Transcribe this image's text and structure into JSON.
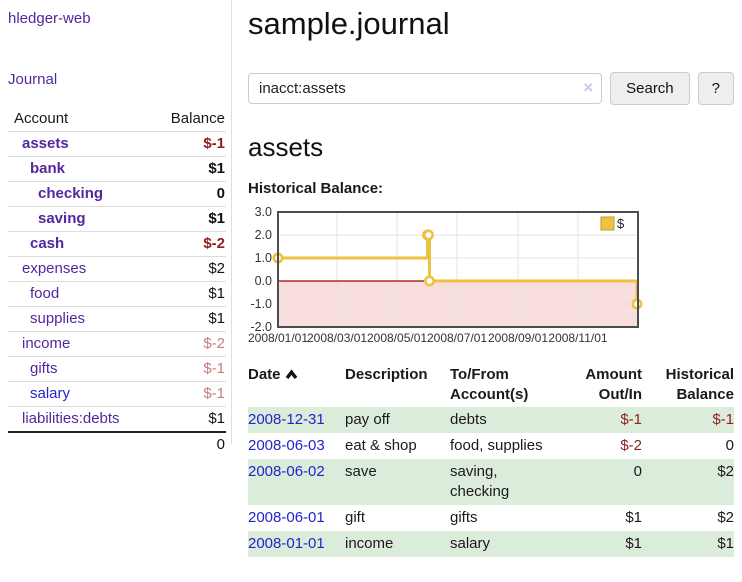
{
  "app": {
    "brand": "hledger-web",
    "nav_journal": "Journal"
  },
  "sidebar": {
    "header": {
      "account": "Account",
      "balance": "Balance"
    },
    "rows": [
      {
        "name": "assets",
        "depth": 1,
        "bold": true,
        "balance": "$-1",
        "neg": "strong",
        "blue": false
      },
      {
        "name": "bank",
        "depth": 2,
        "bold": true,
        "balance": "$1",
        "neg": "",
        "blue": false
      },
      {
        "name": "checking",
        "depth": 3,
        "bold": true,
        "balance": "0",
        "neg": "",
        "blue": false
      },
      {
        "name": "saving",
        "depth": 3,
        "bold": true,
        "balance": "$1",
        "neg": "",
        "blue": false
      },
      {
        "name": "cash",
        "depth": 2,
        "bold": true,
        "balance": "$-2",
        "neg": "strong",
        "blue": false
      },
      {
        "name": "expenses",
        "depth": 1,
        "bold": false,
        "balance": "$2",
        "neg": "",
        "blue": false
      },
      {
        "name": "food",
        "depth": 2,
        "bold": false,
        "balance": "$1",
        "neg": "",
        "blue": false
      },
      {
        "name": "supplies",
        "depth": 2,
        "bold": false,
        "balance": "$1",
        "neg": "",
        "blue": false
      },
      {
        "name": "income",
        "depth": 1,
        "bold": false,
        "balance": "$-2",
        "neg": "soft",
        "blue": false
      },
      {
        "name": "gifts",
        "depth": 2,
        "bold": false,
        "balance": "$-1",
        "neg": "soft",
        "blue": false
      },
      {
        "name": "salary",
        "depth": 2,
        "bold": false,
        "balance": "$-1",
        "neg": "soft",
        "blue": true
      },
      {
        "name": "liabilities:debts",
        "depth": 1,
        "bold": false,
        "balance": "$1",
        "neg": "",
        "blue": false
      }
    ],
    "total": "0"
  },
  "header": {
    "title": "sample.journal"
  },
  "search": {
    "value": "inacct:assets",
    "button_label": "Search",
    "help_label": "?"
  },
  "icons": {
    "clear_x": "×",
    "sort_ascending": "chevron-up"
  },
  "account_page": {
    "title": "assets",
    "chart_label": "Historical Balance:"
  },
  "chart_data": {
    "type": "line",
    "shape": "step-after",
    "title": "Historical Balance",
    "series": [
      {
        "name": "$",
        "color": "#edc240",
        "points": [
          [
            "2008-01-01",
            1
          ],
          [
            "2008-06-01",
            2
          ],
          [
            "2008-06-02",
            2
          ],
          [
            "2008-06-03",
            0
          ],
          [
            "2008-12-31",
            -1
          ]
        ]
      }
    ],
    "x_range": [
      "2008-01-01",
      "2009-01-01"
    ],
    "ylim": [
      -2,
      3
    ],
    "y_ticks": [
      {
        "value": 3,
        "label": "3.0"
      },
      {
        "value": 2,
        "label": "2.0"
      },
      {
        "value": 1,
        "label": "1.0"
      },
      {
        "value": 0,
        "label": "0.0"
      },
      {
        "value": -1,
        "label": "-1.0"
      },
      {
        "value": -2,
        "label": "-2.0"
      }
    ],
    "x_ticks": [
      {
        "date": "2008-01-01",
        "label": "2008/01/01"
      },
      {
        "date": "2008-03-01",
        "label": "2008/03/01"
      },
      {
        "date": "2008-05-01",
        "label": "2008/05/01"
      },
      {
        "date": "2008-07-01",
        "label": "2008/07/01"
      },
      {
        "date": "2008-09-01",
        "label": "2008/09/01"
      },
      {
        "date": "2008-11-01",
        "label": "2008/11/01"
      }
    ],
    "legend": {
      "label": "$",
      "position": "top-right"
    },
    "grid": true,
    "zero_line_color": "#a80000",
    "negative_region_fill": "#f9dede",
    "border_color": "#4d4d4d",
    "grid_color": "#e3e3e3"
  },
  "register": {
    "columns": {
      "date": "Date",
      "description": "Description",
      "accounts_line1": "To/From",
      "accounts_line2": "Account(s)",
      "amount_line1": "Amount",
      "amount_line2": "Out/In",
      "balance_line1": "Historical",
      "balance_line2": "Balance"
    },
    "rows": [
      {
        "date": "2008-12-31",
        "description": "pay off",
        "accounts": "debts",
        "amount": "$-1",
        "balance": "$-1"
      },
      {
        "date": "2008-06-03",
        "description": "eat & shop",
        "accounts": "food, supplies",
        "amount": "$-2",
        "balance": "0"
      },
      {
        "date": "2008-06-02",
        "description": "save",
        "accounts": "saving, checking",
        "amount": "0",
        "balance": "$2"
      },
      {
        "date": "2008-06-01",
        "description": "gift",
        "accounts": "gifts",
        "amount": "$1",
        "balance": "$2"
      },
      {
        "date": "2008-01-01",
        "description": "income",
        "accounts": "salary",
        "amount": "$1",
        "balance": "$1"
      }
    ]
  },
  "colors": {
    "link_purple": "#53279d",
    "link_blue": "#2323cc",
    "negative_strong": "#8e1f1f",
    "negative_soft": "#c4807f",
    "row_stripe_green": "#dcecda",
    "accent_gold": "#edc240"
  }
}
